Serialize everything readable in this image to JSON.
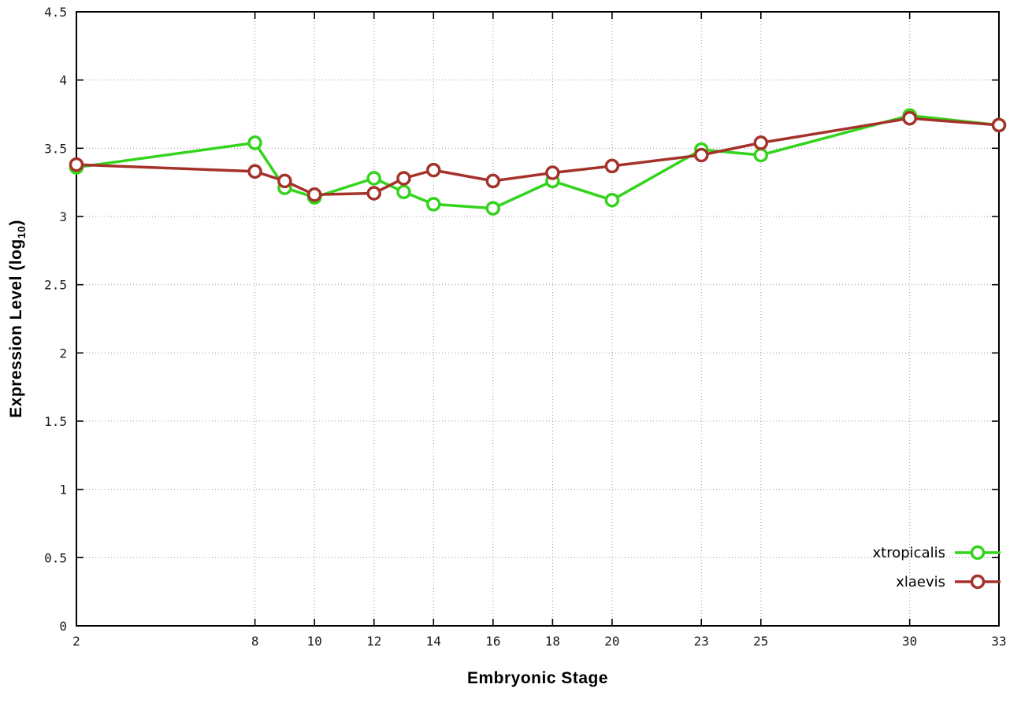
{
  "chart_data": {
    "type": "line",
    "title": "",
    "xlabel": "Embryonic Stage",
    "ylabel": "Expression Level (log10)",
    "ylabel_parts": {
      "pre": "Expression Level (log",
      "sub": "10",
      "post": ")"
    },
    "xlim": [
      2,
      33
    ],
    "ylim": [
      0,
      4.5
    ],
    "x_ticks": [
      2,
      8,
      10,
      12,
      14,
      16,
      18,
      20,
      23,
      25,
      30,
      33
    ],
    "y_ticks": [
      0,
      0.5,
      1,
      1.5,
      2,
      2.5,
      3,
      3.5,
      4,
      4.5
    ],
    "grid": true,
    "legend_position": "inside-bottom-right",
    "marker": "open-circle",
    "background_color": "#ffffff",
    "series": [
      {
        "name": "xtropicalis",
        "color": "#33d41c",
        "x": [
          2,
          8,
          9,
          10,
          12,
          13,
          14,
          16,
          18,
          20,
          23,
          25,
          30,
          33
        ],
        "y": [
          3.36,
          3.54,
          3.21,
          3.14,
          3.28,
          3.18,
          3.09,
          3.06,
          3.26,
          3.12,
          3.49,
          3.45,
          3.74,
          3.67
        ]
      },
      {
        "name": "xlaevis",
        "color": "#a5322a",
        "x": [
          2,
          8,
          9,
          10,
          12,
          13,
          14,
          16,
          18,
          20,
          23,
          25,
          30,
          33
        ],
        "y": [
          3.38,
          3.33,
          3.26,
          3.16,
          3.17,
          3.28,
          3.34,
          3.26,
          3.32,
          3.37,
          3.45,
          3.54,
          3.72,
          3.67
        ]
      }
    ]
  }
}
